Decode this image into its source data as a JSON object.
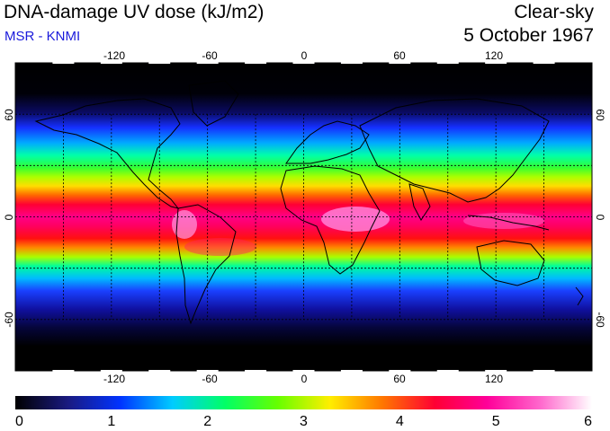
{
  "header": {
    "title": "DNA-damage UV dose (kJ/m2)",
    "source": "MSR - KNMI",
    "condition": "Clear-sky",
    "date": "5 October 1967"
  },
  "map": {
    "projection": "equirectangular",
    "lon_range": [
      -180,
      180
    ],
    "lat_range": [
      -90,
      90
    ],
    "graticule_lon": [
      -150,
      -120,
      -90,
      -60,
      -30,
      0,
      30,
      60,
      90,
      120,
      150
    ],
    "graticule_lat": [
      -60,
      -30,
      0,
      30,
      60
    ],
    "lon_tick_labels": [
      "-120",
      "-60",
      "0",
      "60",
      "120"
    ],
    "lat_tick_labels": [
      "60",
      "0",
      "-60"
    ]
  },
  "colorbar": {
    "min": 0,
    "max": 6,
    "tick_labels": [
      "0",
      "1",
      "2",
      "3",
      "4",
      "5",
      "6"
    ],
    "colors": [
      "#000000",
      "#1a1a80",
      "#0033ff",
      "#00ccff",
      "#00ff66",
      "#66ff00",
      "#ffee00",
      "#ff7700",
      "#ff0033",
      "#ff0099",
      "#ff66cc",
      "#ffffff"
    ]
  }
}
